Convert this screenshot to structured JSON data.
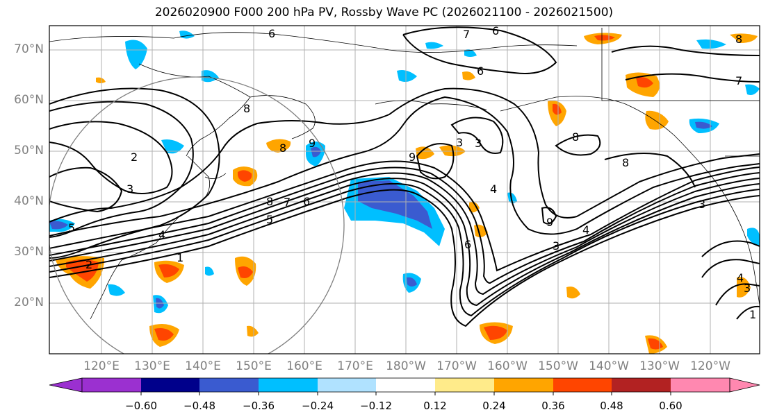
{
  "title": "2026020900 F000 200 hPa PV, Rossby Wave PC (2026021100 - 2026021500)",
  "lat_labels": [
    "70°N",
    "60°N",
    "50°N",
    "40°N",
    "30°N",
    "20°N"
  ],
  "lon_labels": [
    "120°E",
    "130°E",
    "140°E",
    "150°E",
    "160°E",
    "170°E",
    "180°W",
    "170°W",
    "160°W",
    "150°W",
    "140°W",
    "130°W",
    "120°W"
  ],
  "contour_labels": [
    "6",
    "7",
    "6",
    "7",
    "8",
    "8",
    "9",
    "8",
    "3",
    "8",
    "7",
    "5",
    "6",
    "1",
    "2",
    "3",
    "5",
    "3",
    "4",
    "9",
    "8",
    "8",
    "9",
    "4",
    "3",
    "6",
    "6",
    "4",
    "3",
    "1",
    "2",
    "3",
    "4"
  ],
  "colorbar": {
    "ticks": [
      "−0.60",
      "−0.48",
      "−0.36",
      "−0.24",
      "−0.12",
      "0.12",
      "0.24",
      "0.36",
      "0.48",
      "0.60"
    ],
    "colors": [
      "#9b30d0",
      "#00008b",
      "#3a5bd0",
      "#00bfff",
      "#b0e2ff",
      "#ffffff",
      "#ffeb8a",
      "#ffa500",
      "#ff4500",
      "#b22222",
      "#ff88b0"
    ]
  }
}
